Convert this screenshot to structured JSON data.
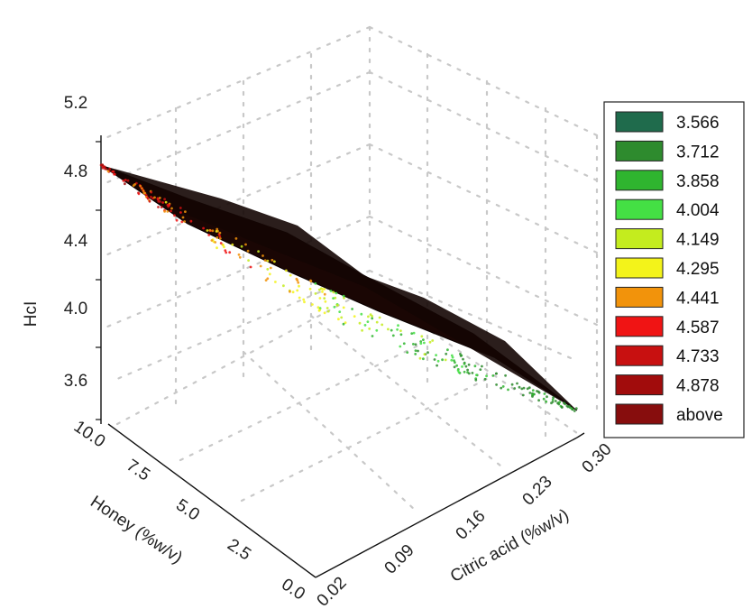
{
  "chart_data": {
    "type": "surface3d",
    "zlabel": "HcI",
    "xlabel": "Citric acid (%w/v)",
    "ylabel": "Honey (%w/v)",
    "x_ticks": [
      "0.02",
      "0.09",
      "0.16",
      "0.23",
      "0.30"
    ],
    "y_ticks": [
      "0.0",
      "2.5",
      "5.0",
      "7.5",
      "10.0"
    ],
    "z_ticks": [
      "3.6",
      "4.0",
      "4.4",
      "4.8",
      "5.2"
    ],
    "xlim": [
      0.02,
      0.3
    ],
    "ylim": [
      0.0,
      10.0
    ],
    "zlim": [
      3.4,
      5.2
    ],
    "surface_corners": [
      {
        "citric_acid": 0.02,
        "honey": 10.0,
        "hcl": 5.0
      },
      {
        "citric_acid": 0.02,
        "honey": 0.0,
        "hcl": 4.37
      },
      {
        "citric_acid": 0.3,
        "honey": 10.0,
        "hcl": 4.25
      },
      {
        "citric_acid": 0.3,
        "honey": 0.0,
        "hcl": 3.55
      }
    ],
    "legend": {
      "position": "right",
      "entries": [
        {
          "label": "3.566",
          "color": "#1f6b4c"
        },
        {
          "label": "3.712",
          "color": "#2e8b2e"
        },
        {
          "label": "3.858",
          "color": "#2fb52f"
        },
        {
          "label": "4.004",
          "color": "#44e044"
        },
        {
          "label": "4.149",
          "color": "#c4ec1e"
        },
        {
          "label": "4.295",
          "color": "#f3f31a"
        },
        {
          "label": "4.441",
          "color": "#f2930b"
        },
        {
          "label": "4.587",
          "color": "#f01414"
        },
        {
          "label": "4.733",
          "color": "#c81010"
        },
        {
          "label": "4.878",
          "color": "#a10c0c"
        },
        {
          "label": "above",
          "color": "#870d0d"
        }
      ]
    }
  }
}
